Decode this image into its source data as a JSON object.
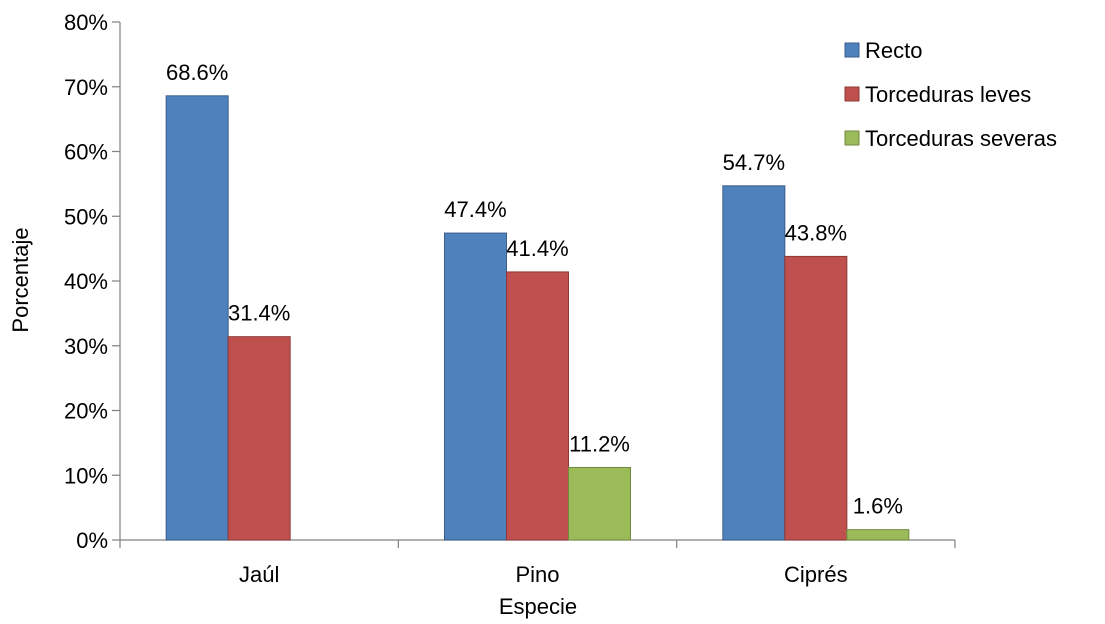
{
  "chart_data": {
    "type": "bar",
    "categories": [
      "Jaúl",
      "Pino",
      "Ciprés"
    ],
    "series": [
      {
        "name": "Recto",
        "values": [
          68.6,
          47.4,
          54.7
        ],
        "labels": [
          "68.6%",
          "47.4%",
          "54.7%"
        ],
        "color": "#4F81BD",
        "stroke": "#385D8A"
      },
      {
        "name": "Torceduras leves",
        "values": [
          31.4,
          41.4,
          43.8
        ],
        "labels": [
          "31.4%",
          "41.4%",
          "43.8%"
        ],
        "color": "#C0504D",
        "stroke": "#8C3836"
      },
      {
        "name": "Torceduras severas",
        "values": [
          null,
          11.2,
          1.6
        ],
        "labels": [
          "",
          "11.2%",
          "1.6%"
        ],
        "color": "#9BBB59",
        "stroke": "#71893F"
      }
    ],
    "xlabel": "Especie",
    "ylabel": "Porcentaje",
    "ylim": [
      0,
      80
    ],
    "yticks": [
      0,
      10,
      20,
      30,
      40,
      50,
      60,
      70,
      80
    ],
    "ytick_labels": [
      "0%",
      "10%",
      "20%",
      "30%",
      "40%",
      "50%",
      "60%",
      "70%",
      "80%"
    ],
    "grid": false,
    "legend_position": "top-right"
  }
}
